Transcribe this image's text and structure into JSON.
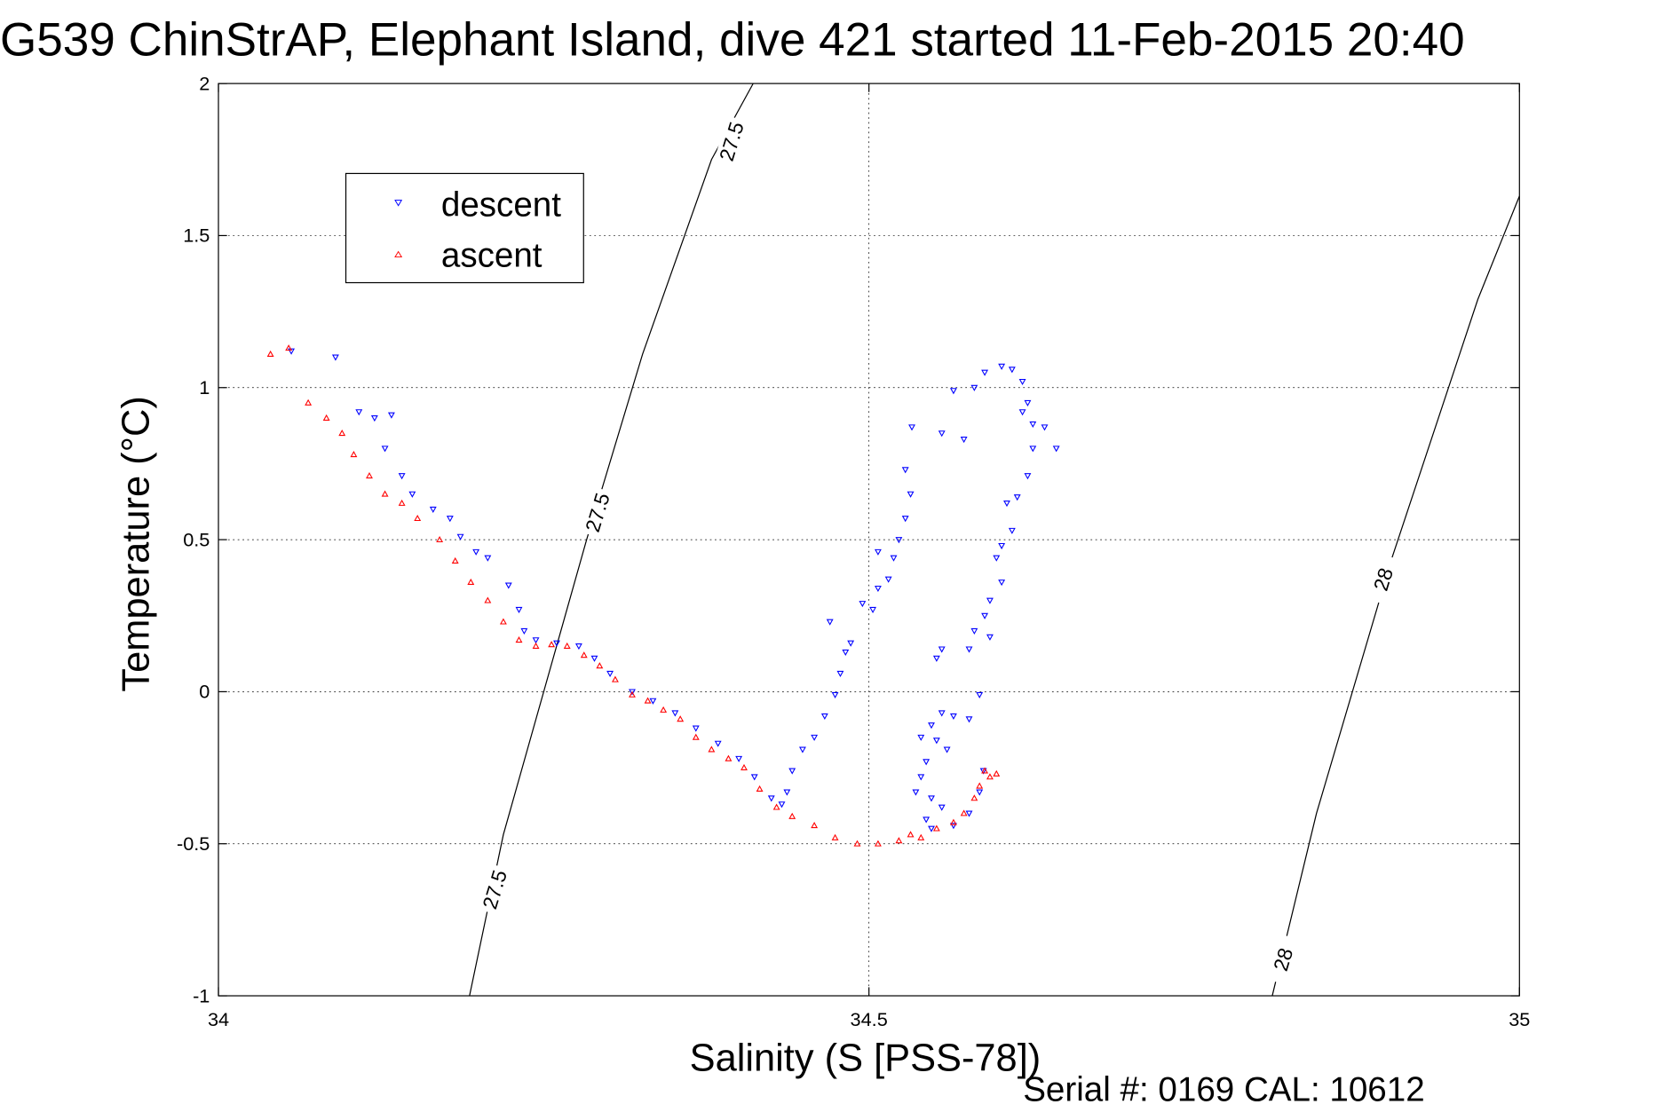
{
  "chart_data": {
    "type": "scatter",
    "title": "G539 ChinStrAP, Elephant Island, dive 421 started 11-Feb-2015 20:40",
    "xlabel": "Salinity (S [PSS-78])",
    "ylabel": "Temperature (°C)",
    "footer": "Serial #: 0169 CAL: 10612",
    "xlim": [
      34,
      35
    ],
    "ylim": [
      -1,
      2
    ],
    "xticks": [
      34,
      34.5,
      35
    ],
    "xtick_labels": [
      "34",
      "34.5",
      "35"
    ],
    "yticks": [
      -1,
      -0.5,
      0,
      0.5,
      1,
      1.5,
      2
    ],
    "ytick_labels": [
      "-1",
      "-0.5",
      "0",
      "0.5",
      "1",
      "1.5",
      "2"
    ],
    "grid": true,
    "legend": {
      "placement": "top-left",
      "entries": [
        "descent",
        "ascent"
      ]
    },
    "series": [
      {
        "name": "descent",
        "marker": "triangle-down",
        "color": "#0000ff",
        "points": [
          [
            34.056,
            1.12
          ],
          [
            34.09,
            1.1
          ],
          [
            34.108,
            0.92
          ],
          [
            34.12,
            0.9
          ],
          [
            34.133,
            0.91
          ],
          [
            34.128,
            0.8
          ],
          [
            34.141,
            0.71
          ],
          [
            34.149,
            0.65
          ],
          [
            34.165,
            0.6
          ],
          [
            34.178,
            0.57
          ],
          [
            34.186,
            0.51
          ],
          [
            34.198,
            0.46
          ],
          [
            34.207,
            0.44
          ],
          [
            34.223,
            0.35
          ],
          [
            34.231,
            0.27
          ],
          [
            34.235,
            0.2
          ],
          [
            34.244,
            0.17
          ],
          [
            34.26,
            0.16
          ],
          [
            34.277,
            0.15
          ],
          [
            34.289,
            0.11
          ],
          [
            34.301,
            0.06
          ],
          [
            34.318,
            0.0
          ],
          [
            34.334,
            -0.03
          ],
          [
            34.351,
            -0.07
          ],
          [
            34.367,
            -0.12
          ],
          [
            34.384,
            -0.17
          ],
          [
            34.4,
            -0.22
          ],
          [
            34.412,
            -0.28
          ],
          [
            34.425,
            -0.35
          ],
          [
            34.433,
            -0.37
          ],
          [
            34.437,
            -0.33
          ],
          [
            34.441,
            -0.26
          ],
          [
            34.449,
            -0.19
          ],
          [
            34.458,
            -0.15
          ],
          [
            34.466,
            -0.08
          ],
          [
            34.474,
            -0.01
          ],
          [
            34.478,
            0.06
          ],
          [
            34.482,
            0.13
          ],
          [
            34.486,
            0.16
          ],
          [
            34.47,
            0.23
          ],
          [
            34.495,
            0.29
          ],
          [
            34.503,
            0.27
          ],
          [
            34.507,
            0.34
          ],
          [
            34.515,
            0.37
          ],
          [
            34.519,
            0.44
          ],
          [
            34.523,
            0.5
          ],
          [
            34.507,
            0.46
          ],
          [
            34.528,
            0.57
          ],
          [
            34.532,
            0.65
          ],
          [
            34.528,
            0.73
          ],
          [
            34.533,
            0.87
          ],
          [
            34.556,
            0.85
          ],
          [
            34.573,
            0.83
          ],
          [
            34.565,
            0.99
          ],
          [
            34.581,
            1.0
          ],
          [
            34.589,
            1.05
          ],
          [
            34.602,
            1.07
          ],
          [
            34.61,
            1.06
          ],
          [
            34.618,
            1.02
          ],
          [
            34.622,
            0.95
          ],
          [
            34.618,
            0.92
          ],
          [
            34.626,
            0.88
          ],
          [
            34.635,
            0.87
          ],
          [
            34.644,
            0.8
          ],
          [
            34.626,
            0.8
          ],
          [
            34.622,
            0.71
          ],
          [
            34.614,
            0.64
          ],
          [
            34.606,
            0.62
          ],
          [
            34.61,
            0.53
          ],
          [
            34.602,
            0.48
          ],
          [
            34.598,
            0.44
          ],
          [
            34.602,
            0.36
          ],
          [
            34.593,
            0.3
          ],
          [
            34.589,
            0.25
          ],
          [
            34.581,
            0.2
          ],
          [
            34.593,
            0.18
          ],
          [
            34.577,
            0.14
          ],
          [
            34.556,
            0.14
          ],
          [
            34.552,
            0.11
          ],
          [
            34.585,
            -0.01
          ],
          [
            34.577,
            -0.09
          ],
          [
            34.565,
            -0.08
          ],
          [
            34.556,
            -0.07
          ],
          [
            34.548,
            -0.11
          ],
          [
            34.54,
            -0.15
          ],
          [
            34.552,
            -0.16
          ],
          [
            34.56,
            -0.19
          ],
          [
            34.544,
            -0.23
          ],
          [
            34.54,
            -0.28
          ],
          [
            34.536,
            -0.33
          ],
          [
            34.548,
            -0.35
          ],
          [
            34.556,
            -0.38
          ],
          [
            34.544,
            -0.42
          ],
          [
            34.548,
            -0.45
          ],
          [
            34.565,
            -0.44
          ],
          [
            34.577,
            -0.4
          ],
          [
            34.585,
            -0.33
          ],
          [
            34.588,
            -0.26
          ]
        ]
      },
      {
        "name": "ascent",
        "marker": "triangle-up",
        "color": "#ff0000",
        "points": [
          [
            34.04,
            1.11
          ],
          [
            34.054,
            1.13
          ],
          [
            34.069,
            0.95
          ],
          [
            34.083,
            0.9
          ],
          [
            34.095,
            0.85
          ],
          [
            34.104,
            0.78
          ],
          [
            34.116,
            0.71
          ],
          [
            34.128,
            0.65
          ],
          [
            34.141,
            0.62
          ],
          [
            34.153,
            0.57
          ],
          [
            34.17,
            0.5
          ],
          [
            34.182,
            0.43
          ],
          [
            34.194,
            0.36
          ],
          [
            34.207,
            0.3
          ],
          [
            34.219,
            0.23
          ],
          [
            34.231,
            0.17
          ],
          [
            34.244,
            0.15
          ],
          [
            34.256,
            0.155
          ],
          [
            34.268,
            0.15
          ],
          [
            34.281,
            0.12
          ],
          [
            34.293,
            0.085
          ],
          [
            34.305,
            0.04
          ],
          [
            34.318,
            -0.01
          ],
          [
            34.33,
            -0.03
          ],
          [
            34.342,
            -0.06
          ],
          [
            34.355,
            -0.09
          ],
          [
            34.367,
            -0.15
          ],
          [
            34.379,
            -0.19
          ],
          [
            34.392,
            -0.22
          ],
          [
            34.404,
            -0.25
          ],
          [
            34.416,
            -0.32
          ],
          [
            34.429,
            -0.38
          ],
          [
            34.441,
            -0.41
          ],
          [
            34.458,
            -0.44
          ],
          [
            34.474,
            -0.48
          ],
          [
            34.491,
            -0.5
          ],
          [
            34.507,
            -0.5
          ],
          [
            34.523,
            -0.49
          ],
          [
            34.532,
            -0.47
          ],
          [
            34.54,
            -0.48
          ],
          [
            34.552,
            -0.45
          ],
          [
            34.565,
            -0.43
          ],
          [
            34.573,
            -0.4
          ],
          [
            34.581,
            -0.35
          ],
          [
            34.585,
            -0.31
          ],
          [
            34.589,
            -0.26
          ],
          [
            34.593,
            -0.28
          ],
          [
            34.598,
            -0.27
          ]
        ]
      }
    ],
    "contours": [
      {
        "level": "27.5",
        "points": [
          [
            34.193,
            -1.0
          ],
          [
            34.219,
            -0.47
          ],
          [
            34.283,
            0.5
          ],
          [
            34.326,
            1.11
          ],
          [
            34.379,
            1.75
          ],
          [
            34.411,
            2.0
          ]
        ],
        "labels": [
          [
            34.212,
            -0.65
          ],
          [
            34.291,
            0.59
          ],
          [
            34.394,
            1.81
          ]
        ]
      },
      {
        "level": "28",
        "points": [
          [
            34.81,
            -1.0
          ],
          [
            34.844,
            -0.4
          ],
          [
            34.902,
            0.44
          ],
          [
            34.968,
            1.29
          ],
          [
            35.0,
            1.63
          ]
        ],
        "labels": [
          [
            34.818,
            -0.88
          ],
          [
            34.895,
            0.37
          ]
        ]
      }
    ]
  }
}
